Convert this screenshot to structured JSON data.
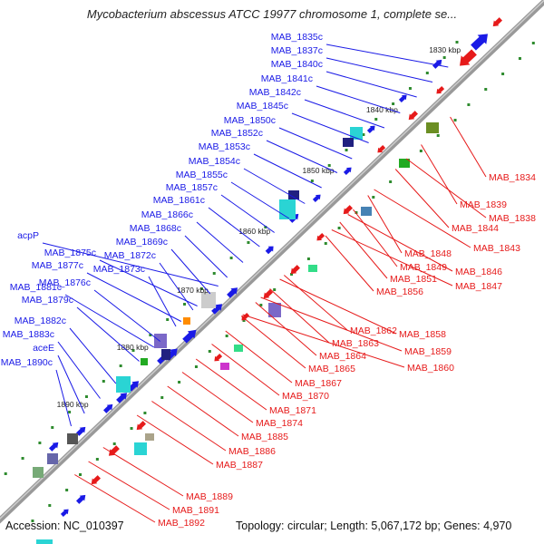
{
  "title": "Mycobacterium abscessus ATCC 19977 chromosome 1, complete se...",
  "accession": "Accession: NC_010397",
  "summary": "Topology: circular; Length: 5,067,172 bp; Genes: 4,970",
  "ticks": [
    "1830 kbp",
    "1840 kbp",
    "1850 kbp",
    "1860 kbp",
    "1870 kbp",
    "1880 kbp",
    "1890 kbp"
  ],
  "colors": {
    "plus": "#1a1ae6",
    "minus": "#e61a1a",
    "backbone": "#999999",
    "gc": "#2e8b2e"
  },
  "genes_plus": [
    "MAB_1835c",
    "MAB_1837c",
    "MAB_1840c",
    "MAB_1841c",
    "MAB_1842c",
    "MAB_1845c",
    "MAB_1850c",
    "MAB_1852c",
    "MAB_1853c",
    "MAB_1854c",
    "MAB_1855c",
    "MAB_1857c",
    "MAB_1861c",
    "MAB_1866c",
    "MAB_1868c",
    "acpP",
    "MAB_1869c",
    "MAB_1875c",
    "MAB_1872c",
    "MAB_1877c",
    "MAB_1873c",
    "MAB_1876c",
    "MAB_1881c",
    "MAB_1879c",
    "MAB_1882c",
    "MAB_1883c",
    "aceE",
    "MAB_1890c"
  ],
  "genes_minus": [
    "MAB_1834",
    "MAB_1839",
    "MAB_1838",
    "MAB_1844",
    "MAB_1843",
    "MAB_1848",
    "MAB_1849",
    "MAB_1846",
    "MAB_1851",
    "MAB_1847",
    "MAB_1856",
    "MAB_1862",
    "MAB_1858",
    "MAB_1863",
    "MAB_1859",
    "MAB_1864",
    "MAB_1860",
    "MAB_1865",
    "MAB_1867",
    "MAB_1870",
    "MAB_1871",
    "MAB_1874",
    "MAB_1885",
    "MAB_1886",
    "MAB_1887",
    "MAB_1889",
    "MAB_1891",
    "MAB_1892"
  ]
}
